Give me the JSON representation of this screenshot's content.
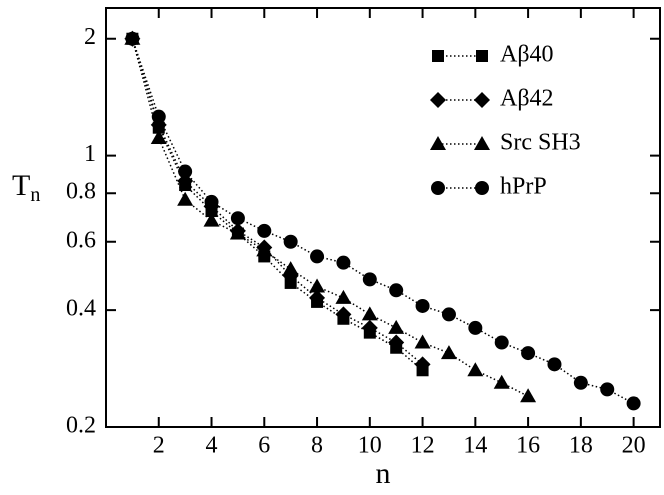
{
  "chart_data": {
    "type": "line",
    "xlabel": "n",
    "ylabel": "T",
    "ylabel_sub": "n",
    "xlim": [
      0,
      21
    ],
    "xticks": [
      2,
      4,
      6,
      8,
      10,
      12,
      14,
      16,
      18,
      20
    ],
    "ylim": [
      0.2,
      2.4
    ],
    "yticks": [
      0.2,
      0.4,
      0.6,
      0.8,
      1,
      2
    ],
    "log_y": true,
    "legend": "upper right",
    "series": [
      {
        "name": "Aβ40",
        "color": "#000000",
        "marker": "square",
        "x": [
          1,
          2,
          3,
          4,
          5,
          6,
          7,
          8,
          9,
          10,
          11,
          12
        ],
        "values": [
          2,
          1.18,
          0.84,
          0.72,
          0.63,
          0.55,
          0.47,
          0.42,
          0.38,
          0.35,
          0.32,
          0.28
        ]
      },
      {
        "name": "Aβ42",
        "color": "#000000",
        "marker": "diamond",
        "x": [
          1,
          2,
          3,
          4,
          5,
          6,
          7,
          8,
          9,
          10,
          11,
          12
        ],
        "values": [
          2,
          1.2,
          0.86,
          0.74,
          0.64,
          0.58,
          0.49,
          0.43,
          0.39,
          0.36,
          0.33,
          0.29
        ]
      },
      {
        "name": "Src SH3",
        "color": "#000000",
        "marker": "triangle",
        "x": [
          1,
          2,
          3,
          4,
          5,
          6,
          7,
          8,
          9,
          10,
          11,
          12,
          13,
          14,
          15,
          16
        ],
        "values": [
          2,
          1.11,
          0.77,
          0.68,
          0.63,
          0.57,
          0.51,
          0.46,
          0.43,
          0.39,
          0.36,
          0.33,
          0.31,
          0.28,
          0.26,
          0.24
        ]
      },
      {
        "name": "hPrP",
        "color": "#000000",
        "marker": "circle",
        "x": [
          1,
          2,
          3,
          4,
          5,
          6,
          7,
          8,
          9,
          10,
          11,
          12,
          13,
          14,
          15,
          16,
          17,
          18,
          19,
          20
        ],
        "values": [
          2,
          1.26,
          0.91,
          0.76,
          0.69,
          0.64,
          0.6,
          0.55,
          0.53,
          0.48,
          0.45,
          0.41,
          0.39,
          0.36,
          0.33,
          0.31,
          0.29,
          0.26,
          0.25,
          0.23
        ]
      }
    ]
  }
}
